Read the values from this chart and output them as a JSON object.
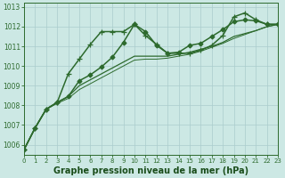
{
  "bg_color": "#cce8e4",
  "grid_color": "#aacccc",
  "line_dark": "#2d6a2d",
  "xlabel": "Graphe pression niveau de la mer (hPa)",
  "xlabel_fontsize": 7.0,
  "xlabel_color": "#1a4d1a",
  "yticks": [
    1006,
    1007,
    1008,
    1009,
    1010,
    1011,
    1012,
    1013
  ],
  "xticks": [
    0,
    1,
    2,
    3,
    4,
    5,
    6,
    7,
    8,
    9,
    10,
    11,
    12,
    13,
    14,
    15,
    16,
    17,
    18,
    19,
    20,
    21,
    22,
    23
  ],
  "xlim": [
    0,
    23
  ],
  "ylim": [
    1005.5,
    1013.2
  ],
  "series": [
    {
      "x": [
        0,
        1,
        2,
        3,
        4,
        5,
        6,
        7,
        8,
        9,
        10,
        11,
        12,
        13,
        14,
        15,
        16,
        17,
        18,
        19,
        20,
        21,
        22,
        23
      ],
      "y": [
        1005.75,
        1006.85,
        1007.8,
        1008.15,
        1008.45,
        1009.25,
        1009.55,
        1009.95,
        1010.45,
        1011.2,
        1012.12,
        1011.75,
        1011.05,
        1010.65,
        1010.7,
        1011.05,
        1011.15,
        1011.5,
        1011.85,
        1012.25,
        1012.35,
        1012.3,
        1012.12,
        1012.12
      ],
      "color": "#2d6a2d",
      "marker": "D",
      "markersize": 2.5,
      "linewidth": 1.1
    },
    {
      "x": [
        0,
        1,
        2,
        3,
        4,
        5,
        6,
        7,
        8,
        9,
        10,
        11,
        12,
        13,
        14,
        15,
        16,
        17,
        18,
        19,
        20,
        21,
        22,
        23
      ],
      "y": [
        1005.75,
        1006.85,
        1007.8,
        1008.15,
        1009.6,
        1010.35,
        1011.1,
        1011.75,
        1011.75,
        1011.75,
        1012.12,
        1011.55,
        1011.1,
        1010.65,
        1010.65,
        1010.65,
        1010.8,
        1011.05,
        1011.55,
        1012.5,
        1012.7,
        1012.35,
        1012.12,
        1012.12
      ],
      "color": "#2d6a2d",
      "marker": "+",
      "markersize": 4.5,
      "linewidth": 1.1
    },
    {
      "x": [
        0,
        1,
        2,
        3,
        4,
        5,
        6,
        7,
        8,
        9,
        10,
        11,
        12,
        13,
        14,
        15,
        16,
        17,
        18,
        19,
        20,
        21,
        22,
        23
      ],
      "y": [
        1005.75,
        1006.85,
        1007.8,
        1008.15,
        1008.45,
        1009.0,
        1009.3,
        1009.6,
        1009.9,
        1010.2,
        1010.5,
        1010.5,
        1010.5,
        1010.5,
        1010.6,
        1010.7,
        1010.85,
        1011.0,
        1011.2,
        1011.5,
        1011.65,
        1011.8,
        1012.0,
        1012.12
      ],
      "color": "#2d6a2d",
      "marker": null,
      "markersize": 0,
      "linewidth": 0.9
    },
    {
      "x": [
        0,
        1,
        2,
        3,
        4,
        5,
        6,
        7,
        8,
        9,
        10,
        11,
        12,
        13,
        14,
        15,
        16,
        17,
        18,
        19,
        20,
        21,
        22,
        23
      ],
      "y": [
        1005.75,
        1006.85,
        1007.8,
        1008.1,
        1008.35,
        1008.8,
        1009.1,
        1009.4,
        1009.7,
        1010.0,
        1010.3,
        1010.35,
        1010.35,
        1010.4,
        1010.5,
        1010.6,
        1010.75,
        1010.95,
        1011.15,
        1011.4,
        1011.6,
        1011.8,
        1012.0,
        1012.12
      ],
      "color": "#2d6a2d",
      "marker": null,
      "markersize": 0,
      "linewidth": 0.7
    }
  ]
}
